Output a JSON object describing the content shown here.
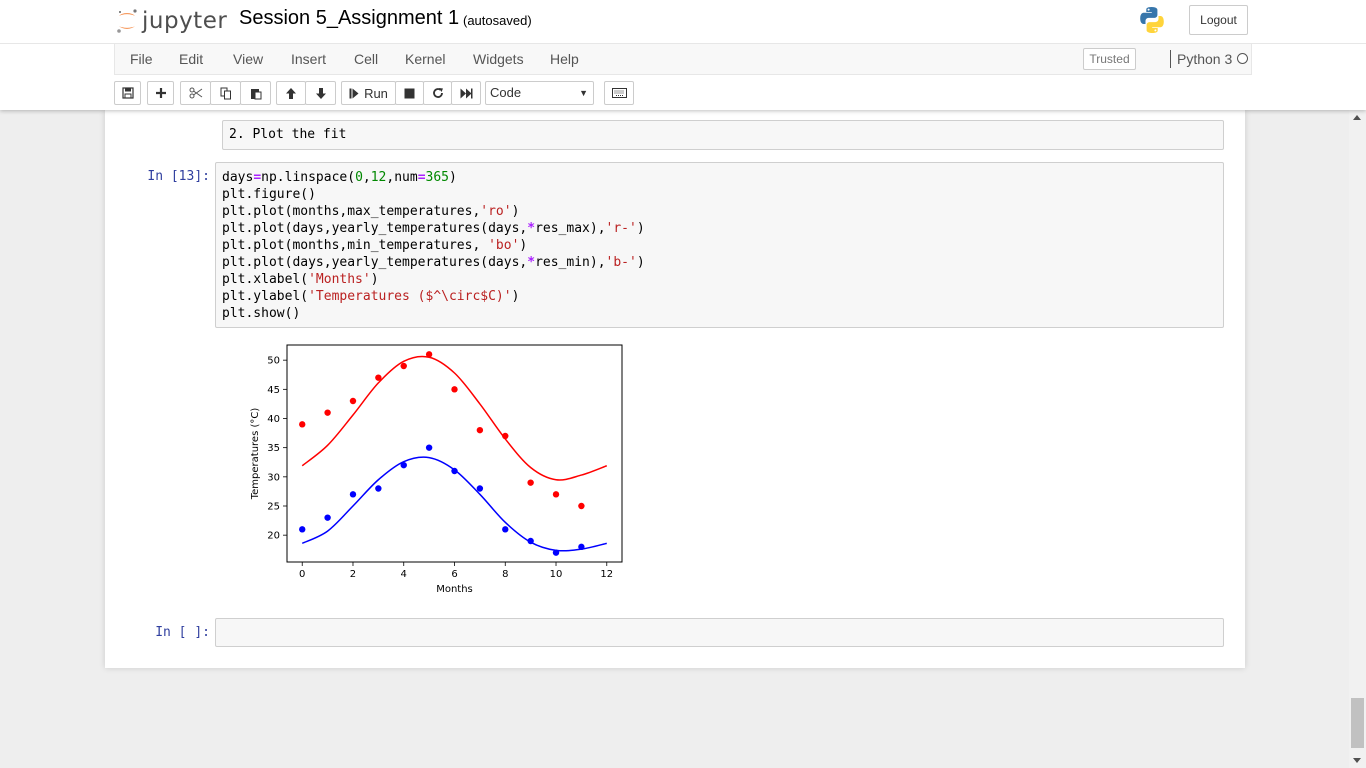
{
  "header": {
    "logo_text": "jupyter",
    "notebook_name": "Session 5_Assignment 1",
    "autosave_status": "(autosaved)",
    "logout_label": "Logout"
  },
  "menubar": {
    "items": [
      "File",
      "Edit",
      "View",
      "Insert",
      "Cell",
      "Kernel",
      "Widgets",
      "Help"
    ],
    "trusted_label": "Trusted",
    "kernel_name": "Python 3"
  },
  "toolbar": {
    "run_label": "Run",
    "cell_type": "Code",
    "icons": [
      "save-icon",
      "plus-icon",
      "cut-icon",
      "copy-icon",
      "paste-icon",
      "arrow-up-icon",
      "arrow-down-icon",
      "step-forward-icon",
      "stop-icon",
      "restart-icon",
      "fast-forward-icon",
      "keyboard-icon"
    ]
  },
  "cells": {
    "markdown_text": "2. Plot the fit",
    "code_prompt": "In [13]:",
    "code_lines": [
      "days=np.linspace(0,12,num=365)",
      "plt.figure()",
      "plt.plot(months,max_temperatures,'ro')",
      "plt.plot(days,yearly_temperatures(days,*res_max),'r-')",
      "plt.plot(months,min_temperatures, 'bo')",
      "plt.plot(days,yearly_temperatures(days,*res_min),'b-')",
      "plt.xlabel('Months')",
      "plt.ylabel('Temperatures ($^\\circ$C)')",
      "plt.show()"
    ],
    "empty_prompt": "In [ ]:"
  },
  "colors": {
    "max_series": "#ff0000",
    "min_series": "#0000ff",
    "prompt_in": "#303f9f"
  },
  "chart_data": {
    "type": "scatter",
    "xlabel": "Months",
    "ylabel": "Temperatures (°C)",
    "xlim": [
      -0.6,
      12.6
    ],
    "ylim": [
      15.4,
      52.6
    ],
    "xticks": [
      0,
      2,
      4,
      6,
      8,
      10,
      12
    ],
    "yticks": [
      20,
      25,
      30,
      35,
      40,
      45,
      50
    ],
    "grid": false,
    "series": [
      {
        "kind": "points",
        "color": "#ff0000",
        "x": [
          0,
          1,
          2,
          3,
          4,
          5,
          6,
          7,
          8,
          9,
          10,
          11
        ],
        "y": [
          39,
          41,
          43,
          47,
          49,
          51,
          45,
          38,
          37,
          29,
          27,
          25
        ]
      },
      {
        "kind": "points",
        "color": "#0000ff",
        "x": [
          0,
          1,
          2,
          3,
          4,
          5,
          6,
          7,
          8,
          9,
          10,
          11
        ],
        "y": [
          21,
          23,
          27,
          28,
          32,
          35,
          31,
          28,
          21,
          19,
          17,
          18
        ]
      },
      {
        "kind": "fit",
        "color": "#ff0000",
        "x": [
          0,
          1,
          2,
          3,
          4,
          5,
          6,
          7,
          8,
          9,
          10,
          11,
          12
        ],
        "y": [
          31.9,
          35.4,
          40.6,
          46.1,
          49.8,
          50.5,
          47.8,
          42.5,
          36.5,
          31.6,
          29.5,
          30.3,
          31.9
        ]
      },
      {
        "kind": "fit",
        "color": "#0000ff",
        "x": [
          0,
          1,
          2,
          3,
          4,
          5,
          6,
          7,
          8,
          9,
          10,
          11,
          12
        ],
        "y": [
          18.6,
          20.7,
          25.0,
          29.5,
          32.6,
          33.3,
          31.2,
          27.0,
          22.2,
          18.8,
          17.4,
          17.6,
          18.6
        ]
      }
    ]
  }
}
